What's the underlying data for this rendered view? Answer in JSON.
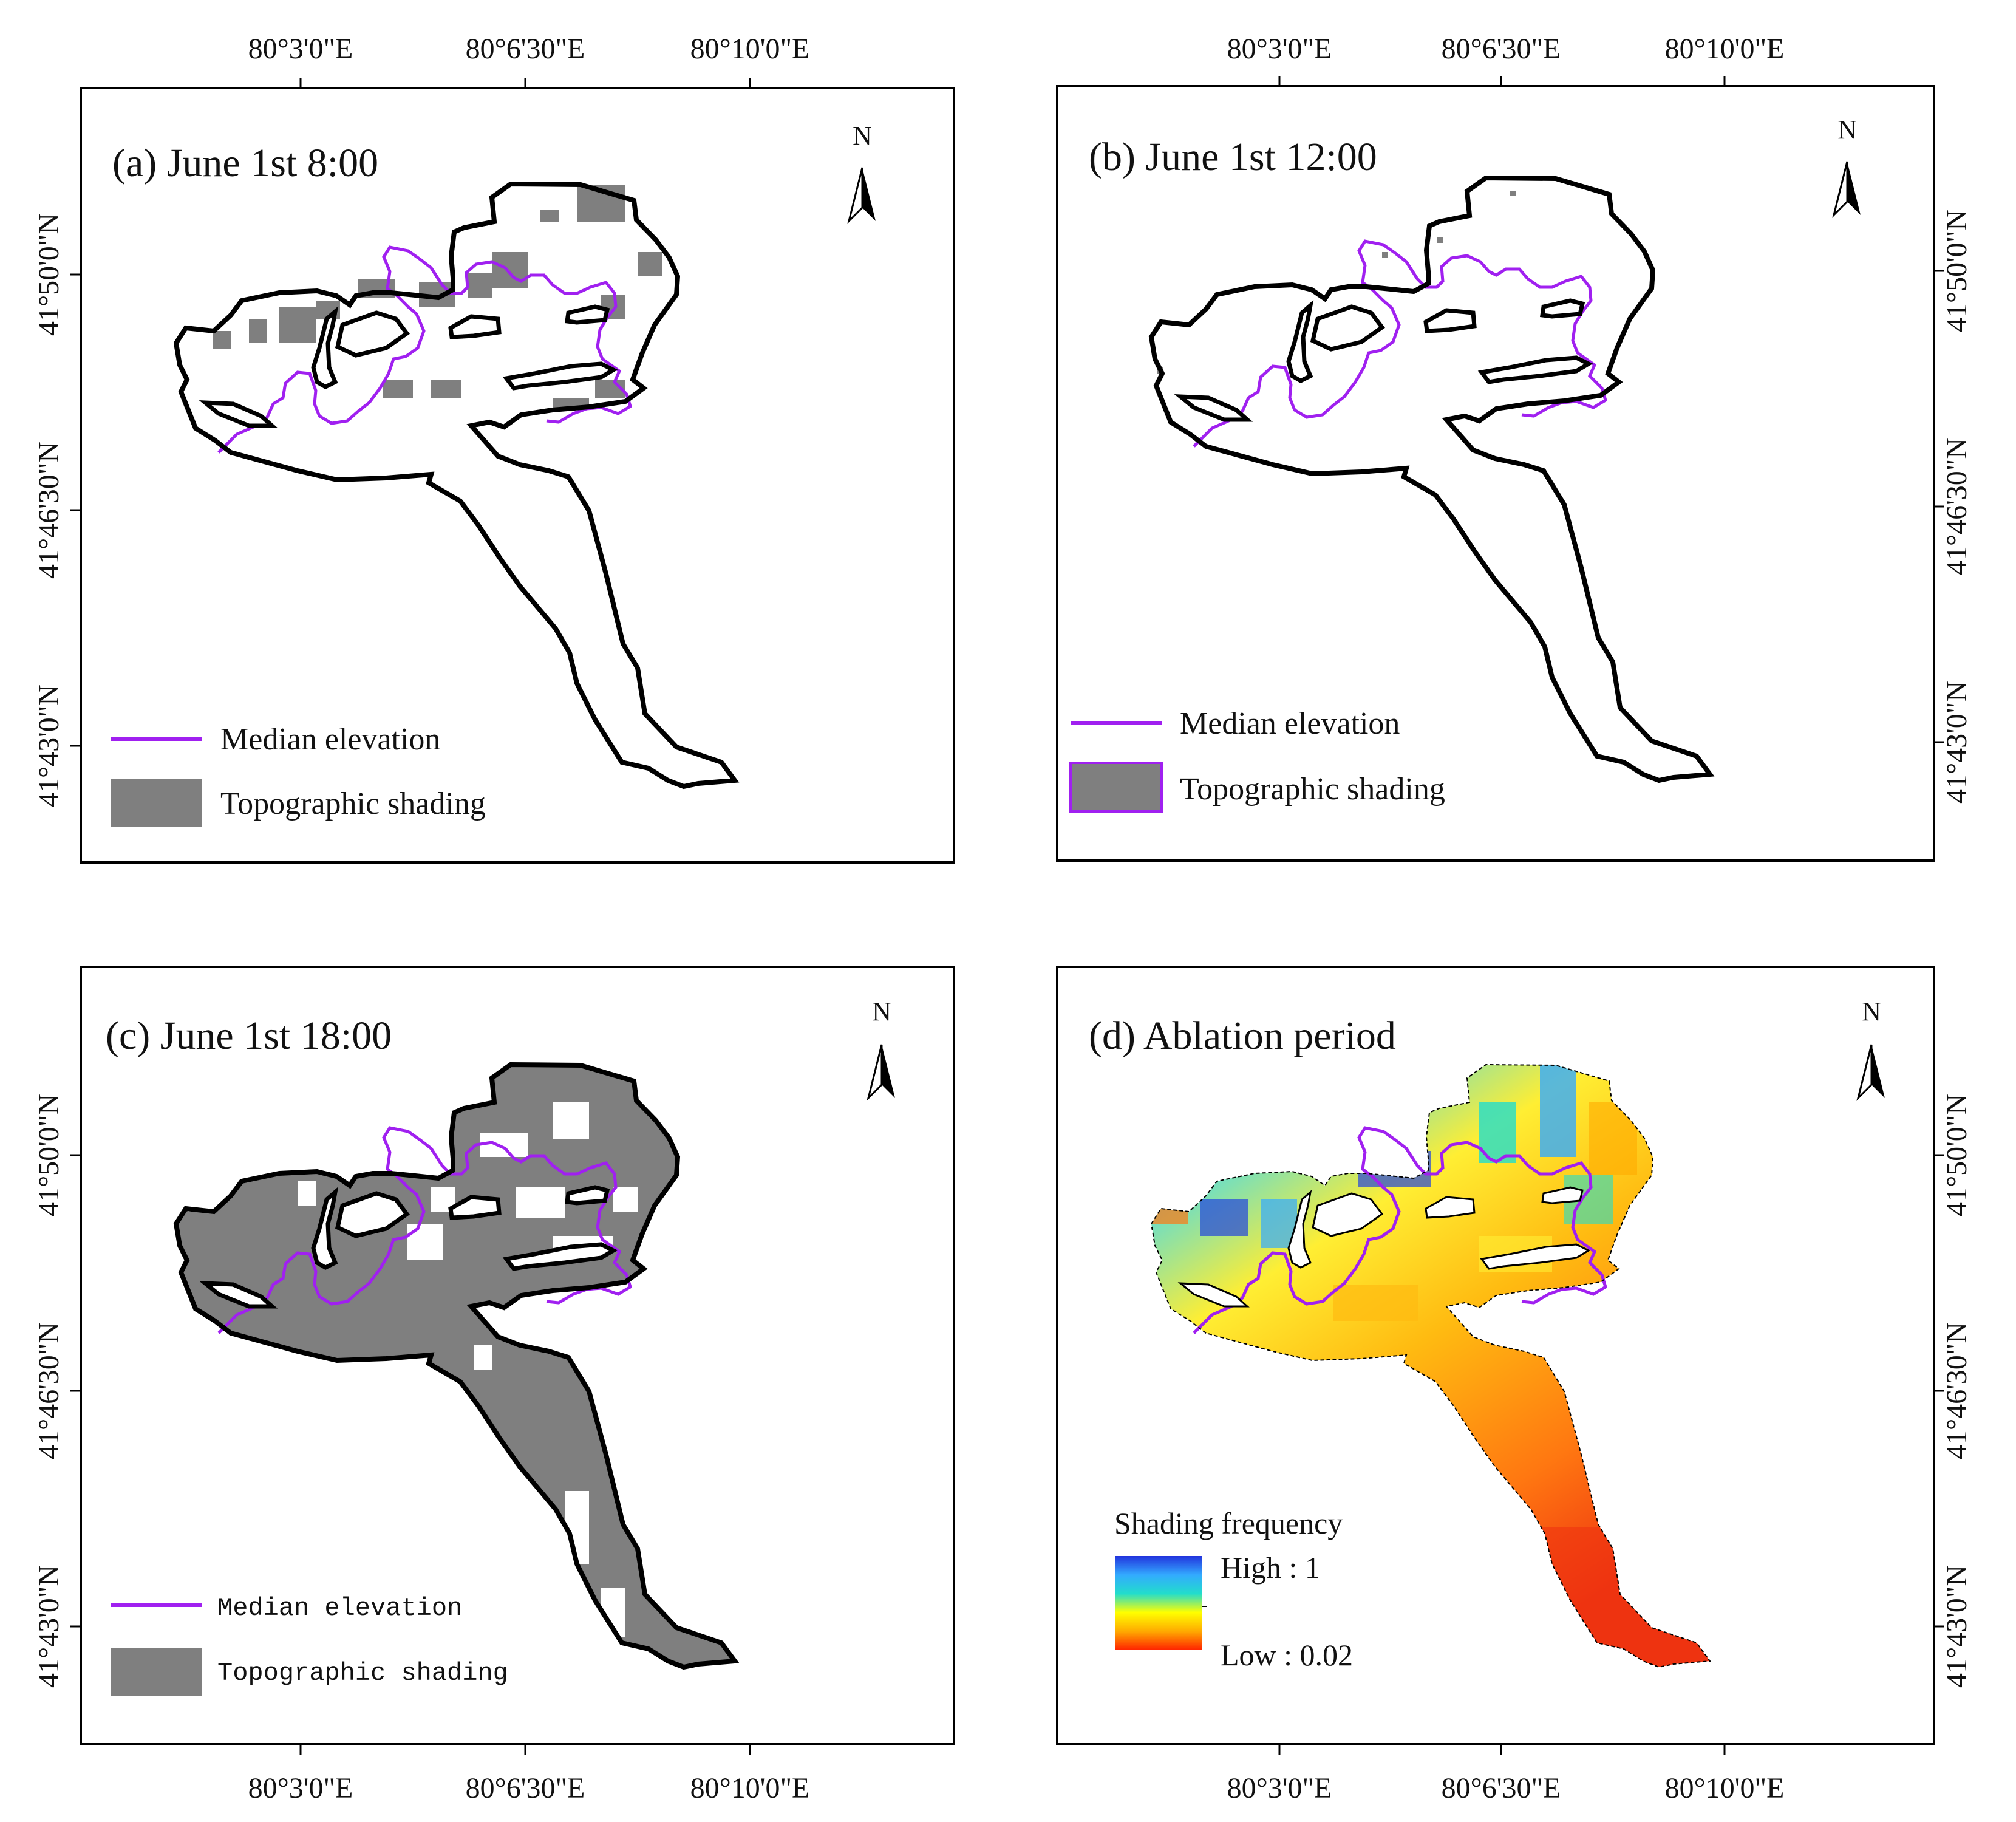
{
  "figure": {
    "top_ticks": [
      "80°3'0\"E",
      "80°6'30\"E",
      "80°10'0\"E"
    ],
    "bottom_ticks": [
      "80°3'0\"E",
      "80°6'30\"E",
      "80°10'0\"E"
    ],
    "left_ticks": [
      "41°50'0\"N",
      "41°46'30\"N",
      "41°43'0\"N"
    ],
    "right_ticks": [
      "41°50'0\"N",
      "41°46'30\"N",
      "41°43'0\"N"
    ],
    "north_label": "N"
  },
  "panels": {
    "a": {
      "title": "(a)  June 1st  8:00",
      "legend_line": "Median elevation",
      "legend_fill": "Topographic shading"
    },
    "b": {
      "title": "(b)  June 1st  12:00",
      "legend_line": "Median elevation",
      "legend_fill": "Topographic shading"
    },
    "c": {
      "title": "(c)  June 1st  18:00",
      "legend_line": "Median elevation",
      "legend_fill": "Topographic shading"
    },
    "d": {
      "title": "(d)   Ablation period",
      "legend_title": "Shading frequency",
      "legend_high": "High : 1",
      "legend_low": "Low : 0.02"
    }
  },
  "colors": {
    "median_line": "#a020f0",
    "shading": "#7f7f7f",
    "outline": "#000000",
    "ramp": [
      "#2233dd",
      "#33aaff",
      "#22ddcc",
      "#ffff00",
      "#ffaa00",
      "#ff2200"
    ]
  },
  "icons": {
    "north_arrow": "north-arrow-icon"
  }
}
